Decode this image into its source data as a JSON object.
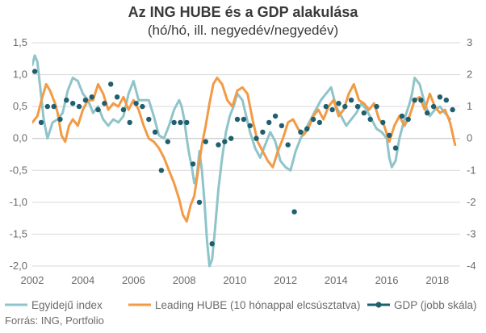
{
  "title": "Az ING HUBE és a GDP alakulása",
  "subtitle": "(hó/hó, ill. negyedév/negyedév)",
  "source": "Forrás: ING, Portfolio",
  "colors": {
    "egyidleju": "#8fc4c9",
    "leading": "#f39a45",
    "gdp": "#1f5f6e",
    "grid": "#d9d9d9",
    "zero": "#bdbdbd"
  },
  "chart_data": {
    "type": "line",
    "xlim": [
      2002,
      2018.9
    ],
    "ylim_left": [
      -2.0,
      1.5
    ],
    "ylim_right": [
      -4,
      3
    ],
    "x_ticks": [
      "2002",
      "2004",
      "2006",
      "2008",
      "2010",
      "2012",
      "2014",
      "2016",
      "2018"
    ],
    "y_ticks_left": [
      "1,5",
      "1,0",
      "0,5",
      "0,0",
      "-0,5",
      "-1,0",
      "-1,5",
      "-2,0"
    ],
    "y_ticks_right": [
      "3",
      "2",
      "1",
      "0",
      "-1",
      "-2",
      "-3",
      "-4"
    ],
    "grid": true,
    "legend_position": "bottom",
    "series": [
      {
        "name": "Egyidejű index",
        "axis": "left",
        "style": "line",
        "x": [
          2002.0,
          2002.1,
          2002.2,
          2002.3,
          2002.45,
          2002.6,
          2002.8,
          2003.0,
          2003.2,
          2003.4,
          2003.6,
          2003.8,
          2004.0,
          2004.2,
          2004.4,
          2004.6,
          2004.8,
          2005.0,
          2005.2,
          2005.4,
          2005.6,
          2005.8,
          2006.0,
          2006.2,
          2006.4,
          2006.6,
          2006.8,
          2007.0,
          2007.2,
          2007.4,
          2007.6,
          2007.8,
          2007.9,
          2008.0,
          2008.1,
          2008.2,
          2008.3,
          2008.4,
          2008.5,
          2008.6,
          2008.7,
          2008.8,
          2008.9,
          2009.0,
          2009.1,
          2009.2,
          2009.35,
          2009.5,
          2009.65,
          2009.8,
          2009.95,
          2010.1,
          2010.3,
          2010.45,
          2010.6,
          2010.8,
          2011.0,
          2011.2,
          2011.4,
          2011.6,
          2011.8,
          2012.0,
          2012.2,
          2012.4,
          2012.6,
          2012.8,
          2013.0,
          2013.2,
          2013.4,
          2013.6,
          2013.8,
          2014.0,
          2014.2,
          2014.4,
          2014.6,
          2014.8,
          2015.0,
          2015.2,
          2015.4,
          2015.6,
          2015.8,
          2016.0,
          2016.1,
          2016.2,
          2016.35,
          2016.5,
          2016.7,
          2016.9,
          2017.0,
          2017.1,
          2017.3,
          2017.5,
          2017.7,
          2017.9,
          2018.1,
          2018.3,
          2018.5
        ],
        "y": [
          1.15,
          1.3,
          1.2,
          0.85,
          0.3,
          0.0,
          0.25,
          0.3,
          0.4,
          0.75,
          0.95,
          0.9,
          0.7,
          0.6,
          0.4,
          0.5,
          0.3,
          0.2,
          0.3,
          0.25,
          0.35,
          0.7,
          0.9,
          0.6,
          0.6,
          0.6,
          0.35,
          0.05,
          0.0,
          0.2,
          0.45,
          0.6,
          0.5,
          0.3,
          0.0,
          -0.25,
          -0.45,
          -0.7,
          -0.6,
          -0.2,
          -0.5,
          -1.0,
          -1.6,
          -2.0,
          -1.9,
          -1.5,
          -0.8,
          -0.3,
          0.1,
          0.35,
          0.5,
          0.7,
          0.6,
          0.35,
          0.1,
          -0.15,
          -0.3,
          -0.1,
          0.1,
          -0.05,
          -0.35,
          -0.45,
          -0.5,
          -0.2,
          0.0,
          0.15,
          0.3,
          0.45,
          0.6,
          0.7,
          0.8,
          0.5,
          0.35,
          0.2,
          0.3,
          0.4,
          0.55,
          0.45,
          0.3,
          0.15,
          0.1,
          0.0,
          -0.3,
          -0.45,
          -0.35,
          0.0,
          0.3,
          0.55,
          0.7,
          0.95,
          0.85,
          0.55,
          0.35,
          0.45,
          0.5,
          0.4,
          0.3
        ]
      },
      {
        "name": "Leading HUBE (10 hónappal elcsúsztatva)",
        "axis": "left",
        "style": "line",
        "x": [
          2002.0,
          2002.2,
          2002.4,
          2002.55,
          2002.7,
          2002.9,
          2003.0,
          2003.15,
          2003.3,
          2003.45,
          2003.6,
          2003.8,
          2004.0,
          2004.2,
          2004.4,
          2004.6,
          2004.8,
          2005.0,
          2005.2,
          2005.4,
          2005.6,
          2005.8,
          2006.0,
          2006.2,
          2006.4,
          2006.6,
          2006.8,
          2007.0,
          2007.2,
          2007.4,
          2007.6,
          2007.8,
          2007.95,
          2008.1,
          2008.25,
          2008.4,
          2008.55,
          2008.7,
          2008.85,
          2009.0,
          2009.15,
          2009.3,
          2009.5,
          2009.7,
          2009.9,
          2010.1,
          2010.3,
          2010.5,
          2010.7,
          2010.9,
          2011.1,
          2011.3,
          2011.5,
          2011.7,
          2011.9,
          2012.1,
          2012.3,
          2012.5,
          2012.7,
          2012.9,
          2013.1,
          2013.3,
          2013.5,
          2013.7,
          2013.9,
          2014.1,
          2014.3,
          2014.5,
          2014.7,
          2014.9,
          2015.1,
          2015.3,
          2015.5,
          2015.7,
          2015.9,
          2016.1,
          2016.3,
          2016.5,
          2016.7,
          2016.9,
          2017.1,
          2017.3,
          2017.5,
          2017.7,
          2017.9,
          2018.1,
          2018.3,
          2018.5,
          2018.7
        ],
        "y": [
          0.25,
          0.35,
          0.65,
          0.85,
          0.75,
          0.55,
          0.4,
          0.05,
          -0.05,
          0.2,
          0.3,
          0.2,
          0.45,
          0.6,
          0.6,
          0.85,
          0.7,
          0.45,
          0.55,
          0.5,
          0.65,
          0.45,
          0.6,
          0.45,
          0.2,
          0.0,
          -0.05,
          -0.15,
          -0.3,
          -0.5,
          -0.7,
          -0.95,
          -1.2,
          -1.3,
          -1.05,
          -0.9,
          -0.5,
          -0.1,
          0.2,
          0.55,
          0.85,
          0.95,
          0.85,
          0.6,
          0.5,
          0.75,
          0.8,
          0.7,
          0.3,
          -0.05,
          -0.2,
          -0.35,
          -0.45,
          -0.2,
          0.0,
          0.25,
          0.3,
          0.15,
          0.05,
          0.15,
          0.35,
          0.45,
          0.3,
          0.5,
          0.6,
          0.35,
          0.45,
          0.7,
          0.85,
          0.6,
          0.55,
          0.45,
          0.55,
          0.3,
          0.2,
          -0.05,
          0.2,
          0.35,
          0.2,
          0.35,
          0.6,
          0.65,
          0.45,
          0.7,
          0.5,
          0.4,
          0.45,
          0.25,
          -0.1
        ]
      },
      {
        "name": "GDP (jobb skála)",
        "axis": "right",
        "style": "markers",
        "x": [
          2002.1,
          2002.35,
          2002.6,
          2002.85,
          2003.1,
          2003.35,
          2003.6,
          2003.85,
          2004.1,
          2004.35,
          2004.6,
          2004.85,
          2005.1,
          2005.35,
          2005.6,
          2005.85,
          2006.1,
          2006.35,
          2006.6,
          2006.85,
          2007.1,
          2007.35,
          2007.6,
          2007.85,
          2008.1,
          2008.35,
          2008.6,
          2008.85,
          2009.1,
          2009.35,
          2009.6,
          2009.85,
          2010.1,
          2010.35,
          2010.6,
          2010.85,
          2011.1,
          2011.35,
          2011.6,
          2011.85,
          2012.1,
          2012.35,
          2012.6,
          2012.85,
          2013.1,
          2013.35,
          2013.6,
          2013.85,
          2014.1,
          2014.35,
          2014.6,
          2014.85,
          2015.1,
          2015.35,
          2015.6,
          2015.85,
          2016.1,
          2016.35,
          2016.6,
          2016.85,
          2017.1,
          2017.35,
          2017.6,
          2017.85,
          2018.1,
          2018.35,
          2018.6
        ],
        "y": [
          2.1,
          0.5,
          1.0,
          1.0,
          0.6,
          1.2,
          1.1,
          1.0,
          1.2,
          1.3,
          0.9,
          1.1,
          1.7,
          1.3,
          0.9,
          0.5,
          1.1,
          1.0,
          0.6,
          0.2,
          -1.0,
          -0.1,
          0.5,
          0.5,
          0.5,
          -0.8,
          -2.0,
          -0.1,
          -3.3,
          -0.2,
          -0.1,
          0.0,
          0.6,
          0.6,
          0.4,
          0.0,
          0.2,
          0.5,
          0.7,
          0.4,
          -0.2,
          -2.3,
          0.2,
          0.3,
          0.6,
          0.5,
          1.0,
          0.9,
          1.1,
          1.0,
          1.2,
          1.0,
          0.8,
          0.6,
          1.0,
          0.5,
          0.1,
          -0.3,
          0.7,
          0.6,
          1.2,
          1.2,
          0.8,
          1.0,
          1.3,
          1.2,
          0.9
        ]
      }
    ]
  }
}
